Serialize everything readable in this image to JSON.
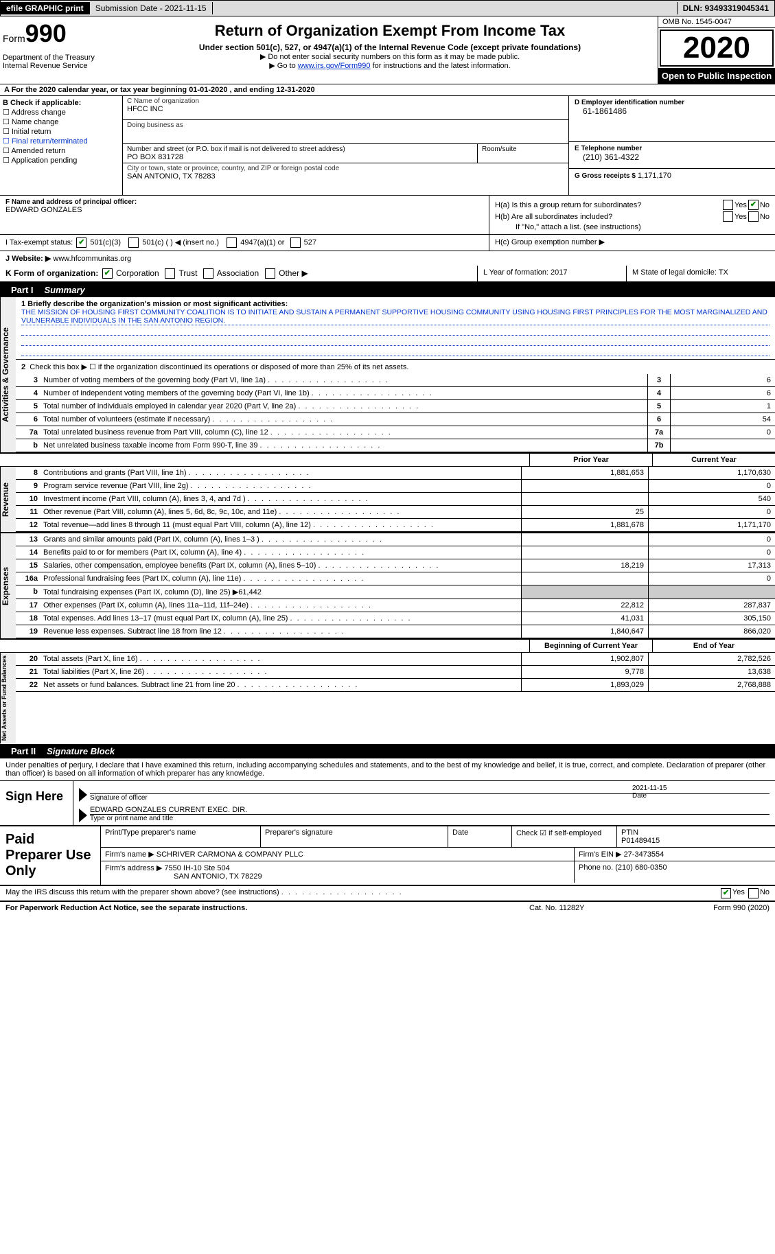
{
  "topbar": {
    "efile": "efile GRAPHIC print",
    "submission_label": "Submission Date - 2021-11-15",
    "dln_label": "DLN: 93493319045341"
  },
  "header": {
    "form_prefix": "Form",
    "form_number": "990",
    "dept": "Department of the Treasury\nInternal Revenue Service",
    "title": "Return of Organization Exempt From Income Tax",
    "subtitle": "Under section 501(c), 527, or 4947(a)(1) of the Internal Revenue Code (except private foundations)",
    "note1": "▶ Do not enter social security numbers on this form as it may be made public.",
    "note2_prefix": "▶ Go to ",
    "note2_link": "www.irs.gov/Form990",
    "note2_suffix": " for instructions and the latest information.",
    "omb": "OMB No. 1545-0047",
    "year": "2020",
    "open": "Open to Public Inspection"
  },
  "rowA": "A For the 2020 calendar year, or tax year beginning 01-01-2020    , and ending 12-31-2020",
  "colB": {
    "label": "B Check if applicable:",
    "items": [
      "Address change",
      "Name change",
      "Initial return",
      "Final return/terminated",
      "Amended return",
      "Application pending"
    ]
  },
  "colC": {
    "name_label": "C Name of organization",
    "name": "HFCC INC",
    "dba_label": "Doing business as",
    "dba": "",
    "addr_label": "Number and street (or P.O. box if mail is not delivered to street address)",
    "addr": "PO BOX 831728",
    "room_label": "Room/suite",
    "room": "",
    "city_label": "City or town, state or province, country, and ZIP or foreign postal code",
    "city": "SAN ANTONIO, TX  78283"
  },
  "colD": {
    "label": "D Employer identification number",
    "value": "61-1861486"
  },
  "colE": {
    "label": "E Telephone number",
    "value": "(210) 361-4322"
  },
  "colG": {
    "label": "G Gross receipts $",
    "value": "1,171,170"
  },
  "colF": {
    "label": "F Name and address of principal officer:",
    "value": "EDWARD GONZALES"
  },
  "colH": {
    "a_label": "H(a)  Is this a group return for subordinates?",
    "a_yes": "Yes",
    "a_no": "No",
    "b_label": "H(b)  Are all subordinates included?",
    "b_yes": "Yes",
    "b_no": "No",
    "b_note": "If \"No,\" attach a list. (see instructions)",
    "c_label": "H(c)  Group exemption number ▶"
  },
  "rowI": {
    "label": "I   Tax-exempt status:",
    "opt1": "501(c)(3)",
    "opt2": "501(c) (   ) ◀ (insert no.)",
    "opt3": "4947(a)(1) or",
    "opt4": "527"
  },
  "rowJ": {
    "label": "J   Website: ▶",
    "value": "www.hfcommunitas.org"
  },
  "rowK": {
    "label": "K Form of organization:",
    "opts": [
      "Corporation",
      "Trust",
      "Association",
      "Other ▶"
    ],
    "L": "L Year of formation: 2017",
    "M": "M State of legal domicile: TX"
  },
  "part1": {
    "part": "Part I",
    "title": "Summary"
  },
  "mission": {
    "prompt": "1   Briefly describe the organization's mission or most significant activities:",
    "text": "THE MISSION OF HOUSING FIRST COMMUNITY COALITION IS TO INITIATE AND SUSTAIN A PERMANENT SUPPORTIVE HOUSING COMMUNITY USING HOUSING FIRST PRINCIPLES FOR THE MOST MARGINALIZED AND VULNERABLE INDIVIDUALS IN THE SAN ANTONIO REGION."
  },
  "gov": {
    "label": "Activities & Governance",
    "line2": "Check this box ▶ ☐  if the organization discontinued its operations or disposed of more than 25% of its net assets.",
    "rows": [
      {
        "n": "3",
        "d": "Number of voting members of the governing body (Part VI, line 1a)",
        "box": "3",
        "v": "6"
      },
      {
        "n": "4",
        "d": "Number of independent voting members of the governing body (Part VI, line 1b)",
        "box": "4",
        "v": "6"
      },
      {
        "n": "5",
        "d": "Total number of individuals employed in calendar year 2020 (Part V, line 2a)",
        "box": "5",
        "v": "1"
      },
      {
        "n": "6",
        "d": "Total number of volunteers (estimate if necessary)",
        "box": "6",
        "v": "54"
      },
      {
        "n": "7a",
        "d": "Total unrelated business revenue from Part VIII, column (C), line 12",
        "box": "7a",
        "v": "0"
      },
      {
        "n": "b",
        "d": "Net unrelated business taxable income from Form 990-T, line 39",
        "box": "7b",
        "v": ""
      }
    ]
  },
  "twocol_head": {
    "prior": "Prior Year",
    "current": "Current Year"
  },
  "rev": {
    "label": "Revenue",
    "rows": [
      {
        "n": "8",
        "d": "Contributions and grants (Part VIII, line 1h)",
        "p": "1,881,653",
        "c": "1,170,630"
      },
      {
        "n": "9",
        "d": "Program service revenue (Part VIII, line 2g)",
        "p": "",
        "c": "0"
      },
      {
        "n": "10",
        "d": "Investment income (Part VIII, column (A), lines 3, 4, and 7d )",
        "p": "",
        "c": "540"
      },
      {
        "n": "11",
        "d": "Other revenue (Part VIII, column (A), lines 5, 6d, 8c, 9c, 10c, and 11e)",
        "p": "25",
        "c": "0"
      },
      {
        "n": "12",
        "d": "Total revenue—add lines 8 through 11 (must equal Part VIII, column (A), line 12)",
        "p": "1,881,678",
        "c": "1,171,170"
      }
    ]
  },
  "exp": {
    "label": "Expenses",
    "rows": [
      {
        "n": "13",
        "d": "Grants and similar amounts paid (Part IX, column (A), lines 1–3 )",
        "p": "",
        "c": "0"
      },
      {
        "n": "14",
        "d": "Benefits paid to or for members (Part IX, column (A), line 4)",
        "p": "",
        "c": "0"
      },
      {
        "n": "15",
        "d": "Salaries, other compensation, employee benefits (Part IX, column (A), lines 5–10)",
        "p": "18,219",
        "c": "17,313"
      },
      {
        "n": "16a",
        "d": "Professional fundraising fees (Part IX, column (A), line 11e)",
        "p": "",
        "c": "0"
      },
      {
        "n": "b",
        "d": "Total fundraising expenses (Part IX, column (D), line 25) ▶61,442",
        "p": "SHADE",
        "c": "SHADE"
      },
      {
        "n": "17",
        "d": "Other expenses (Part IX, column (A), lines 11a–11d, 11f–24e)",
        "p": "22,812",
        "c": "287,837"
      },
      {
        "n": "18",
        "d": "Total expenses. Add lines 13–17 (must equal Part IX, column (A), line 25)",
        "p": "41,031",
        "c": "305,150"
      },
      {
        "n": "19",
        "d": "Revenue less expenses. Subtract line 18 from line 12",
        "p": "1,840,647",
        "c": "866,020"
      }
    ]
  },
  "na_head": {
    "beg": "Beginning of Current Year",
    "end": "End of Year"
  },
  "na": {
    "label": "Net Assets or Fund Balances",
    "rows": [
      {
        "n": "20",
        "d": "Total assets (Part X, line 16)",
        "p": "1,902,807",
        "c": "2,782,526"
      },
      {
        "n": "21",
        "d": "Total liabilities (Part X, line 26)",
        "p": "9,778",
        "c": "13,638"
      },
      {
        "n": "22",
        "d": "Net assets or fund balances. Subtract line 21 from line 20",
        "p": "1,893,029",
        "c": "2,768,888"
      }
    ]
  },
  "part2": {
    "part": "Part II",
    "title": "Signature Block"
  },
  "sigtext": "Under penalties of perjury, I declare that I have examined this return, including accompanying schedules and statements, and to the best of my knowledge and belief, it is true, correct, and complete. Declaration of preparer (other than officer) is based on all information of which preparer has any knowledge.",
  "sign": {
    "label": "Sign Here",
    "sig_label": "Signature of officer",
    "date": "2021-11-15",
    "date_label": "Date",
    "name": "EDWARD GONZALES CURRENT EXEC. DIR.",
    "name_label": "Type or print name and title"
  },
  "prep": {
    "label": "Paid Preparer Use Only",
    "h1": "Print/Type preparer's name",
    "h2": "Preparer's signature",
    "h3": "Date",
    "h4_chk": "Check ☑ if self-employed",
    "h5": "PTIN",
    "ptin": "P01489415",
    "firm_label": "Firm's name    ▶",
    "firm": "SCHRIVER CARMONA & COMPANY PLLC",
    "ein_label": "Firm's EIN ▶",
    "ein": "27-3473554",
    "addr_label": "Firm's address ▶",
    "addr1": "7550 IH-10 Ste 504",
    "addr2": "SAN ANTONIO, TX  78229",
    "phone_label": "Phone no.",
    "phone": "(210) 680-0350"
  },
  "discuss": {
    "q": "May the IRS discuss this return with the preparer shown above? (see instructions)",
    "yes": "Yes",
    "no": "No"
  },
  "footer": {
    "left": "For Paperwork Reduction Act Notice, see the separate instructions.",
    "mid": "Cat. No. 11282Y",
    "right": "Form 990 (2020)"
  }
}
